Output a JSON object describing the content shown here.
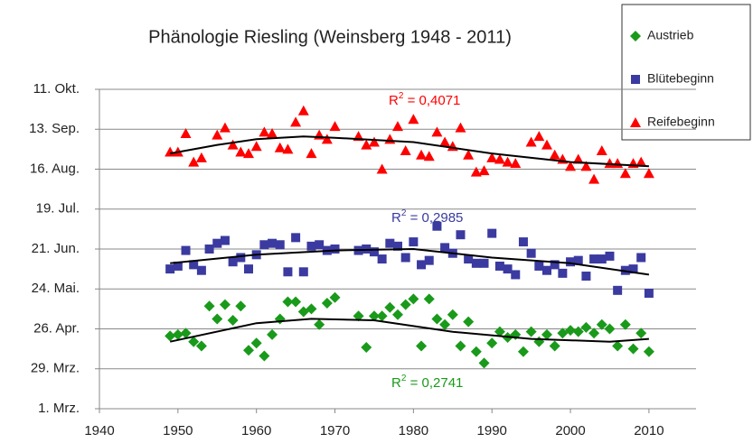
{
  "chart_data": {
    "type": "scatter",
    "title": "Phänologie Riesling (Weinsberg 1948 - 2011)",
    "xlim": [
      1940,
      2016
    ],
    "xticks": [
      1940,
      1950,
      1960,
      1970,
      1980,
      1990,
      2000,
      2010
    ],
    "ylim": [
      60,
      284
    ],
    "yticks": [
      {
        "value": 60,
        "label": "1. Mrz."
      },
      {
        "value": 88,
        "label": "29. Mrz."
      },
      {
        "value": 116,
        "label": "26. Apr."
      },
      {
        "value": 144,
        "label": "24. Mai."
      },
      {
        "value": 172,
        "label": "21. Jun."
      },
      {
        "value": 200,
        "label": "19. Jul."
      },
      {
        "value": 228,
        "label": "16. Aug."
      },
      {
        "value": 256,
        "label": "13. Sep."
      },
      {
        "value": 284,
        "label": "11. Okt."
      }
    ],
    "grid": true,
    "legend": "top-right",
    "series": [
      {
        "name": "Austrieb",
        "color": "#1a9a1a",
        "marker": "diamond",
        "x": [
          1949,
          1950,
          1951,
          1952,
          1953,
          1954,
          1955,
          1956,
          1957,
          1958,
          1959,
          1960,
          1961,
          1962,
          1963,
          1964,
          1965,
          1966,
          1967,
          1968,
          1969,
          1970,
          1973,
          1974,
          1975,
          1976,
          1977,
          1978,
          1979,
          1980,
          1981,
          1982,
          1983,
          1984,
          1985,
          1986,
          1987,
          1988,
          1989,
          1990,
          1991,
          1992,
          1993,
          1994,
          1995,
          1996,
          1997,
          1998,
          1999,
          2000,
          2001,
          2002,
          2003,
          2004,
          2005,
          2006,
          2007,
          2008,
          2009,
          2010
        ],
        "values": [
          111,
          112,
          113,
          107,
          104,
          132,
          123,
          133,
          122,
          132,
          101,
          106,
          97,
          112,
          123,
          135,
          135,
          128,
          130,
          119,
          134,
          138,
          125,
          103,
          125,
          125,
          131,
          126,
          133,
          137,
          104,
          137,
          123,
          119,
          126,
          104,
          121,
          100,
          92,
          106,
          114,
          110,
          112,
          100,
          114,
          107,
          112,
          104,
          113,
          115,
          114,
          117,
          113,
          119,
          116,
          104,
          119,
          102,
          113,
          100
        ],
        "trend": {
          "x": [
            1949,
            1960,
            1967,
            1975,
            1985,
            1995,
            2005,
            2010
          ],
          "values": [
            107,
            120,
            123,
            122,
            114,
            109,
            107,
            109
          ]
        }
      },
      {
        "name": "Blütebeginn",
        "color": "#3a3aa0",
        "marker": "square",
        "x": [
          1949,
          1950,
          1951,
          1952,
          1953,
          1954,
          1955,
          1956,
          1957,
          1958,
          1959,
          1960,
          1961,
          1962,
          1963,
          1964,
          1965,
          1966,
          1967,
          1968,
          1969,
          1970,
          1973,
          1974,
          1975,
          1976,
          1977,
          1978,
          1979,
          1980,
          1981,
          1982,
          1983,
          1984,
          1985,
          1986,
          1987,
          1988,
          1989,
          1990,
          1991,
          1992,
          1993,
          1994,
          1995,
          1996,
          1997,
          1998,
          1999,
          2000,
          2001,
          2002,
          2003,
          2004,
          2005,
          2006,
          2007,
          2008,
          2009,
          2010
        ],
        "values": [
          158,
          160,
          171,
          161,
          157,
          172,
          176,
          178,
          163,
          166,
          158,
          168,
          175,
          176,
          175,
          156,
          180,
          156,
          174,
          175,
          171,
          172,
          171,
          172,
          170,
          165,
          176,
          174,
          166,
          177,
          161,
          164,
          188,
          173,
          169,
          182,
          165,
          162,
          162,
          183,
          160,
          158,
          154,
          177,
          169,
          160,
          157,
          161,
          155,
          163,
          164,
          153,
          165,
          165,
          167,
          143,
          157,
          158,
          166,
          141
        ],
        "trend": {
          "x": [
            1949,
            1960,
            1970,
            1980,
            1990,
            2000,
            2010
          ],
          "values": [
            162,
            168,
            171,
            172,
            166,
            162,
            154
          ]
        }
      },
      {
        "name": "Reifebeginn",
        "color": "#ff0000",
        "marker": "triangle",
        "x": [
          1949,
          1950,
          1951,
          1952,
          1953,
          1955,
          1956,
          1957,
          1958,
          1959,
          1960,
          1961,
          1962,
          1963,
          1964,
          1965,
          1966,
          1967,
          1968,
          1969,
          1970,
          1973,
          1974,
          1975,
          1976,
          1977,
          1978,
          1979,
          1980,
          1981,
          1982,
          1983,
          1984,
          1985,
          1986,
          1987,
          1988,
          1989,
          1990,
          1991,
          1992,
          1993,
          1995,
          1996,
          1997,
          1998,
          1999,
          2000,
          2001,
          2002,
          2003,
          2004,
          2005,
          2006,
          2007,
          2008,
          2009,
          2010
        ],
        "values": [
          240,
          240,
          253,
          233,
          236,
          252,
          257,
          245,
          240,
          239,
          244,
          254,
          253,
          243,
          242,
          261,
          269,
          239,
          252,
          249,
          258,
          251,
          245,
          247,
          228,
          249,
          258,
          241,
          263,
          238,
          237,
          254,
          247,
          244,
          257,
          238,
          226,
          227,
          236,
          235,
          233,
          232,
          247,
          251,
          245,
          238,
          235,
          230,
          235,
          230,
          221,
          241,
          232,
          232,
          225,
          232,
          233,
          225
        ],
        "trend": {
          "x": [
            1949,
            1955,
            1960,
            1966,
            1970,
            1980,
            1990,
            2000,
            2010
          ],
          "values": [
            239,
            245,
            249,
            251,
            250,
            247,
            239,
            233,
            230
          ]
        }
      }
    ],
    "annotations": [
      {
        "base": "R",
        "sup": "2",
        "text": " = 0,4071",
        "color": "#ff0000"
      },
      {
        "base": "R",
        "sup": "2",
        "text": " = 0,2985",
        "color": "#3a3aa0"
      },
      {
        "base": "R",
        "sup": "2",
        "text": " = 0,2741",
        "color": "#1a9a1a"
      }
    ]
  }
}
